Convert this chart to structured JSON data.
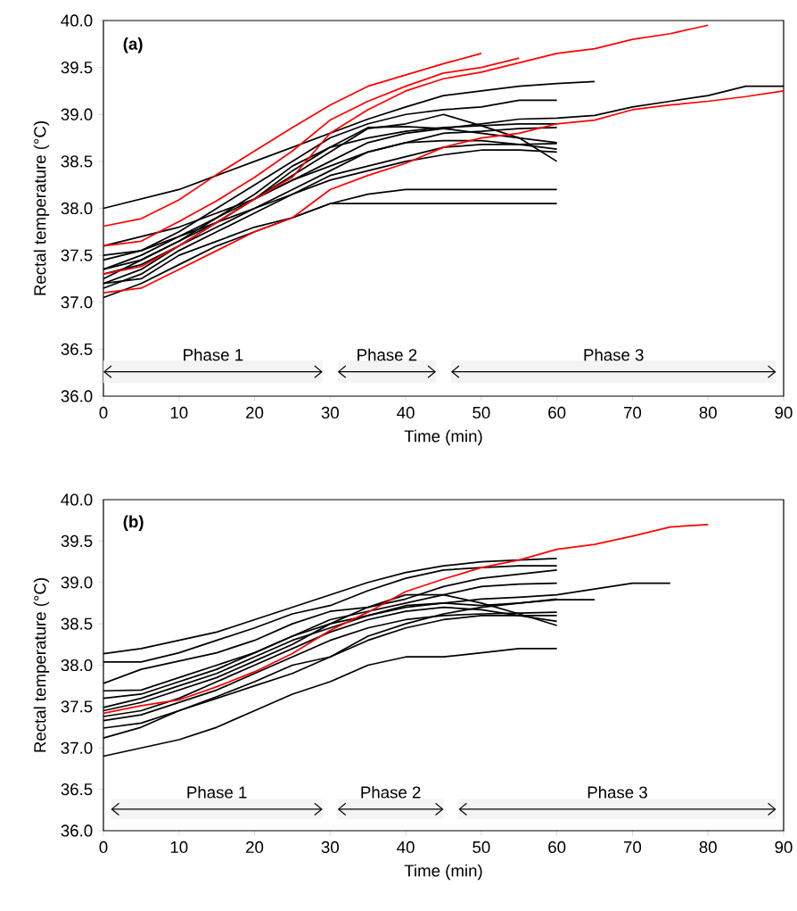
{
  "chart_data": [
    {
      "type": "line",
      "xlabel": "Time (min)",
      "ylabel": "Rectal temperature (°C)",
      "annotations": [
        "(a)"
      ],
      "xlim": [
        0,
        90
      ],
      "xticks": [
        0,
        10,
        20,
        30,
        40,
        50,
        60,
        70,
        80,
        90
      ],
      "ylim": [
        36,
        40
      ],
      "yticks": [
        {
          "value": 36,
          "label": "36.0"
        },
        {
          "value": 36.5,
          "label": "36.5"
        },
        {
          "value": 37,
          "label": "37.0"
        },
        {
          "value": 37.5,
          "label": "37.5"
        },
        {
          "value": 38,
          "label": "38.0"
        },
        {
          "value": 38.5,
          "label": "38.5"
        },
        {
          "value": 39,
          "label": "39.0"
        },
        {
          "value": 39.5,
          "label": "39.5"
        },
        {
          "value": 40,
          "label": "40.0"
        }
      ],
      "bands": [
        {
          "axis": "x",
          "from": 0,
          "to": 29,
          "label": "Phase 1",
          "color": "#f4f4f4"
        },
        {
          "axis": "x",
          "from": 31,
          "to": 44,
          "label": "Phase 2",
          "color": "#f4f4f4"
        },
        {
          "axis": "x",
          "from": 46,
          "to": 89,
          "label": "Phase 3",
          "color": "#f4f4f4"
        }
      ],
      "series": [
        {
          "color": "#000000",
          "x": [
            0,
            5,
            10,
            15,
            20,
            25,
            30,
            35,
            40,
            45,
            50,
            55,
            60,
            65
          ],
          "values": [
            38.0,
            38.1,
            38.2,
            38.35,
            38.5,
            38.65,
            38.8,
            38.95,
            39.08,
            39.2,
            39.25,
            39.3,
            39.33,
            39.35
          ]
        },
        {
          "color": "#000000",
          "x": [
            0,
            5,
            10,
            15,
            20,
            25,
            30,
            35,
            40,
            45,
            50,
            55,
            60
          ],
          "values": [
            37.45,
            37.55,
            37.75,
            38.0,
            38.25,
            38.5,
            38.75,
            38.9,
            39.0,
            39.05,
            39.08,
            39.15,
            39.15
          ]
        },
        {
          "color": "#000000",
          "x": [
            0,
            5,
            10,
            15,
            20,
            25,
            30,
            35,
            40,
            45,
            50,
            55,
            60,
            65,
            70,
            75,
            80,
            85,
            90
          ],
          "values": [
            37.35,
            37.5,
            37.7,
            37.9,
            38.1,
            38.3,
            38.5,
            38.7,
            38.8,
            38.85,
            38.9,
            38.95,
            38.96,
            38.99,
            39.08,
            39.14,
            39.2,
            39.3,
            39.3
          ]
        },
        {
          "color": "#000000",
          "x": [
            0,
            5,
            10,
            15,
            20,
            25,
            30,
            35,
            40,
            45,
            50,
            55,
            60
          ],
          "values": [
            37.25,
            37.45,
            37.65,
            37.85,
            38.1,
            38.35,
            38.6,
            38.85,
            38.9,
            39.0,
            38.88,
            38.75,
            38.5
          ]
        },
        {
          "color": "#000000",
          "x": [
            0,
            5,
            10,
            15,
            20,
            25,
            30,
            35,
            40,
            45,
            50,
            55,
            60
          ],
          "values": [
            37.3,
            37.4,
            37.6,
            37.85,
            38.1,
            38.4,
            38.65,
            38.86,
            38.87,
            38.85,
            38.8,
            38.75,
            38.7
          ]
        },
        {
          "color": "#000000",
          "x": [
            0,
            5,
            10,
            15,
            20,
            25,
            30,
            35,
            40,
            45,
            50,
            55,
            60
          ],
          "values": [
            37.2,
            37.35,
            37.6,
            37.8,
            38.0,
            38.2,
            38.4,
            38.6,
            38.7,
            38.8,
            38.82,
            38.85,
            38.86
          ]
        },
        {
          "color": "#000000",
          "x": [
            0,
            5,
            10,
            15,
            20,
            25,
            30,
            35,
            40,
            45,
            50,
            55,
            60
          ],
          "values": [
            37.15,
            37.3,
            37.55,
            37.75,
            37.95,
            38.15,
            38.35,
            38.45,
            38.55,
            38.65,
            38.68,
            38.68,
            38.69
          ]
        },
        {
          "color": "#000000",
          "x": [
            0,
            5,
            10,
            15,
            20,
            25,
            30,
            35,
            40,
            45,
            50,
            55,
            60
          ],
          "values": [
            37.5,
            37.55,
            37.7,
            37.85,
            38.0,
            38.15,
            38.3,
            38.4,
            38.5,
            38.57,
            38.62,
            38.62,
            38.6
          ]
        },
        {
          "color": "#000000",
          "x": [
            0,
            5,
            10,
            15,
            20,
            25,
            30,
            35,
            40,
            45,
            50,
            55,
            60
          ],
          "values": [
            37.05,
            37.2,
            37.4,
            37.6,
            37.75,
            37.9,
            38.05,
            38.15,
            38.2,
            38.2,
            38.2,
            38.2,
            38.2
          ]
        },
        {
          "color": "#000000",
          "x": [
            0,
            5,
            10,
            15,
            20,
            25,
            30,
            35,
            40,
            45,
            50,
            55,
            60
          ],
          "values": [
            37.2,
            37.25,
            37.5,
            37.65,
            37.8,
            37.9,
            38.05,
            38.05,
            38.05,
            38.05,
            38.05,
            38.05,
            38.05
          ]
        },
        {
          "color": "#000000",
          "x": [
            0,
            5,
            10,
            15,
            20,
            25,
            30,
            35,
            40,
            45,
            50,
            55,
            60
          ],
          "values": [
            37.6,
            37.7,
            37.8,
            37.95,
            38.1,
            38.3,
            38.45,
            38.6,
            38.7,
            38.72,
            38.72,
            38.68,
            38.63
          ]
        },
        {
          "color": "#000000",
          "x": [
            0,
            5,
            10,
            15,
            20,
            25,
            30,
            35,
            40,
            45,
            50,
            55,
            60
          ],
          "values": [
            37.35,
            37.45,
            37.65,
            37.9,
            38.15,
            38.45,
            38.65,
            38.75,
            38.82,
            38.86,
            38.88,
            38.9,
            38.9
          ]
        },
        {
          "color": "#ff0000",
          "x": [
            0,
            5,
            10,
            15,
            20,
            25,
            30,
            35,
            40,
            45,
            50
          ],
          "values": [
            37.81,
            37.89,
            38.09,
            38.36,
            38.61,
            38.86,
            39.1,
            39.3,
            39.42,
            39.54,
            39.65
          ]
        },
        {
          "color": "#ff0000",
          "x": [
            0,
            5,
            10,
            15,
            20,
            25,
            30,
            35,
            40,
            45,
            50,
            55
          ],
          "values": [
            37.6,
            37.65,
            37.86,
            38.08,
            38.33,
            38.61,
            38.94,
            39.14,
            39.3,
            39.44,
            39.5,
            39.6
          ]
        },
        {
          "color": "#ff0000",
          "x": [
            0,
            5,
            10,
            15,
            20,
            25,
            30,
            35,
            40,
            45,
            50,
            55,
            60,
            65,
            70,
            75,
            80
          ],
          "values": [
            37.3,
            37.38,
            37.6,
            37.85,
            38.1,
            38.33,
            38.8,
            39.05,
            39.25,
            39.38,
            39.45,
            39.55,
            39.65,
            39.7,
            39.8,
            39.86,
            39.95
          ]
        },
        {
          "color": "#ff0000",
          "x": [
            0,
            5,
            10,
            15,
            20,
            25,
            30,
            35,
            40,
            45,
            50,
            55,
            60,
            65,
            70,
            75,
            80,
            85,
            90
          ],
          "values": [
            37.1,
            37.15,
            37.35,
            37.55,
            37.75,
            37.9,
            38.2,
            38.35,
            38.48,
            38.65,
            38.75,
            38.8,
            38.9,
            38.94,
            39.05,
            39.1,
            39.14,
            39.19,
            39.25
          ]
        }
      ]
    },
    {
      "type": "line",
      "xlabel": "Time (min)",
      "ylabel": "Rectal temperature (°C)",
      "annotations": [
        "(b)"
      ],
      "xlim": [
        0,
        90
      ],
      "xticks": [
        0,
        10,
        20,
        30,
        40,
        50,
        60,
        70,
        80,
        90
      ],
      "ylim": [
        36,
        40
      ],
      "yticks": [
        {
          "value": 36,
          "label": "36.0"
        },
        {
          "value": 36.5,
          "label": "36.5"
        },
        {
          "value": 37,
          "label": "37.0"
        },
        {
          "value": 37.5,
          "label": "37.5"
        },
        {
          "value": 38,
          "label": "38.0"
        },
        {
          "value": 38.5,
          "label": "38.5"
        },
        {
          "value": 39,
          "label": "39.0"
        },
        {
          "value": 39.5,
          "label": "39.5"
        },
        {
          "value": 40,
          "label": "40.0"
        }
      ],
      "bands": [
        {
          "axis": "x",
          "from": 1,
          "to": 29,
          "label": "Phase 1",
          "color": "#f4f4f4"
        },
        {
          "axis": "x",
          "from": 31,
          "to": 45,
          "label": "Phase 2",
          "color": "#f4f4f4"
        },
        {
          "axis": "x",
          "from": 47,
          "to": 89,
          "label": "Phase 3",
          "color": "#f4f4f4"
        }
      ],
      "series": [
        {
          "color": "#000000",
          "x": [
            0,
            5,
            10,
            15,
            20,
            25,
            30,
            35,
            40,
            45,
            50,
            55,
            60
          ],
          "values": [
            38.14,
            38.2,
            38.3,
            38.4,
            38.55,
            38.7,
            38.85,
            39.0,
            39.12,
            39.2,
            39.25,
            39.27,
            39.29
          ]
        },
        {
          "color": "#000000",
          "x": [
            0,
            5,
            10,
            15,
            20,
            25,
            30,
            35,
            40,
            45,
            50,
            55,
            60
          ],
          "values": [
            38.04,
            38.04,
            38.15,
            38.3,
            38.45,
            38.62,
            38.72,
            38.9,
            39.05,
            39.15,
            39.18,
            39.2,
            39.2
          ]
        },
        {
          "color": "#000000",
          "x": [
            0,
            5,
            10,
            15,
            20,
            25,
            30,
            35,
            40,
            45,
            50,
            55,
            60
          ],
          "values": [
            37.78,
            37.95,
            38.05,
            38.15,
            38.3,
            38.5,
            38.65,
            38.7,
            38.8,
            38.95,
            39.05,
            39.1,
            39.15
          ]
        },
        {
          "color": "#000000",
          "x": [
            0,
            5,
            10,
            15,
            20,
            25,
            30,
            35,
            40,
            45,
            50,
            55,
            60
          ],
          "values": [
            37.69,
            37.7,
            37.85,
            38.0,
            38.15,
            38.35,
            38.55,
            38.65,
            38.75,
            38.85,
            38.95,
            38.98,
            38.99
          ]
        },
        {
          "color": "#000000",
          "x": [
            0,
            5,
            10,
            15,
            20,
            25,
            30,
            35,
            40,
            45,
            50,
            55,
            60,
            65,
            70,
            75
          ],
          "values": [
            37.6,
            37.65,
            37.8,
            37.95,
            38.15,
            38.35,
            38.5,
            38.6,
            38.7,
            38.75,
            38.8,
            38.82,
            38.85,
            38.92,
            38.99,
            38.99
          ]
        },
        {
          "color": "#000000",
          "x": [
            0,
            5,
            10,
            15,
            20,
            25,
            30,
            35,
            40,
            45,
            50,
            55,
            60,
            65
          ],
          "values": [
            37.49,
            37.6,
            37.75,
            37.9,
            38.1,
            38.3,
            38.45,
            38.6,
            38.72,
            38.75,
            38.72,
            38.75,
            38.79,
            38.79
          ]
        },
        {
          "color": "#000000",
          "x": [
            0,
            5,
            10,
            15,
            20,
            25,
            30,
            35,
            40,
            45,
            50,
            55,
            60
          ],
          "values": [
            37.45,
            37.55,
            37.7,
            37.85,
            38.05,
            38.25,
            38.5,
            38.7,
            38.85,
            38.85,
            38.75,
            38.62,
            38.48
          ]
        },
        {
          "color": "#000000",
          "x": [
            0,
            5,
            10,
            15,
            20,
            25,
            30,
            35,
            40,
            45,
            50,
            55,
            60
          ],
          "values": [
            37.38,
            37.45,
            37.6,
            37.8,
            38.0,
            38.2,
            38.4,
            38.55,
            38.65,
            38.7,
            38.67,
            38.6,
            38.53
          ]
        },
        {
          "color": "#000000",
          "x": [
            0,
            5,
            10,
            15,
            20,
            25,
            30,
            35,
            40,
            45,
            50,
            55,
            60
          ],
          "values": [
            37.33,
            37.4,
            37.55,
            37.7,
            37.9,
            38.1,
            38.3,
            38.45,
            38.55,
            38.6,
            38.62,
            38.63,
            38.64
          ]
        },
        {
          "color": "#000000",
          "x": [
            0,
            5,
            10,
            15,
            20,
            25,
            30,
            35,
            40,
            45,
            50,
            55,
            60
          ],
          "values": [
            37.24,
            37.3,
            37.45,
            37.62,
            37.8,
            38.0,
            38.1,
            38.3,
            38.45,
            38.55,
            38.6,
            38.6,
            38.6
          ]
        },
        {
          "color": "#000000",
          "x": [
            0,
            5,
            10,
            15,
            20,
            25,
            30,
            35,
            40,
            45,
            50,
            55,
            60
          ],
          "values": [
            37.12,
            37.25,
            37.45,
            37.6,
            37.75,
            37.9,
            38.1,
            38.35,
            38.5,
            38.62,
            38.7,
            38.75,
            38.8
          ]
        },
        {
          "color": "#000000",
          "x": [
            0,
            5,
            10,
            15,
            20,
            25,
            30,
            35,
            40,
            45,
            50,
            55,
            60
          ],
          "values": [
            36.9,
            37.0,
            37.1,
            37.25,
            37.45,
            37.65,
            37.8,
            38.0,
            38.1,
            38.1,
            38.15,
            38.2,
            38.2
          ]
        },
        {
          "color": "#ff0000",
          "x": [
            0,
            5,
            10,
            15,
            20,
            25,
            30,
            35,
            40,
            45,
            50,
            55,
            60,
            65,
            70,
            75,
            80
          ],
          "values": [
            37.42,
            37.51,
            37.58,
            37.74,
            37.92,
            38.14,
            38.42,
            38.64,
            38.89,
            39.04,
            39.18,
            39.27,
            39.4,
            39.46,
            39.56,
            39.67,
            39.7
          ]
        }
      ]
    }
  ]
}
